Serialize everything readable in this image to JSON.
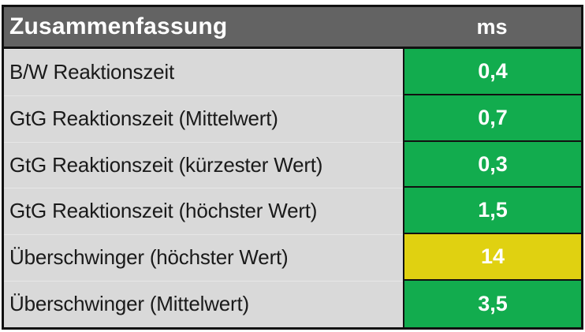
{
  "table": {
    "header": {
      "title": "Zusammenfassung",
      "unit": "ms"
    },
    "rows": [
      {
        "label": "B/W Reaktionszeit",
        "value": "0,4",
        "status": "good"
      },
      {
        "label": "GtG Reaktionszeit (Mittelwert)",
        "value": "0,7",
        "status": "good"
      },
      {
        "label": "GtG Reaktionszeit (kürzester Wert)",
        "value": "0,3",
        "status": "good"
      },
      {
        "label": "GtG Reaktionszeit (höchster Wert)",
        "value": "1,5",
        "status": "good"
      },
      {
        "label": "Überschwinger (höchster Wert)",
        "value": "14",
        "status": "warning"
      },
      {
        "label": "Überschwinger (Mittelwert)",
        "value": "3,5",
        "status": "good"
      }
    ],
    "colors": {
      "good": "#12ac4e",
      "warning": "#e0d111",
      "header_bg": "#636363",
      "row_bg": "#d9d9d9",
      "border": "#111111"
    }
  },
  "chart_data": {
    "type": "table",
    "title": "Zusammenfassung",
    "columns": [
      "Zusammenfassung",
      "ms"
    ],
    "rows": [
      [
        "B/W Reaktionszeit",
        0.4
      ],
      [
        "GtG Reaktionszeit (Mittelwert)",
        0.7
      ],
      [
        "GtG Reaktionszeit (kürzester Wert)",
        0.3
      ],
      [
        "GtG Reaktionszeit (höchster Wert)",
        1.5
      ],
      [
        "Überschwinger (höchster Wert)",
        14
      ],
      [
        "Überschwinger (Mittelwert)",
        3.5
      ]
    ],
    "cell_status_ms": [
      "good",
      "good",
      "good",
      "good",
      "warning",
      "good"
    ],
    "status_colors": {
      "good": "#12ac4e",
      "warning": "#e0d111"
    }
  }
}
